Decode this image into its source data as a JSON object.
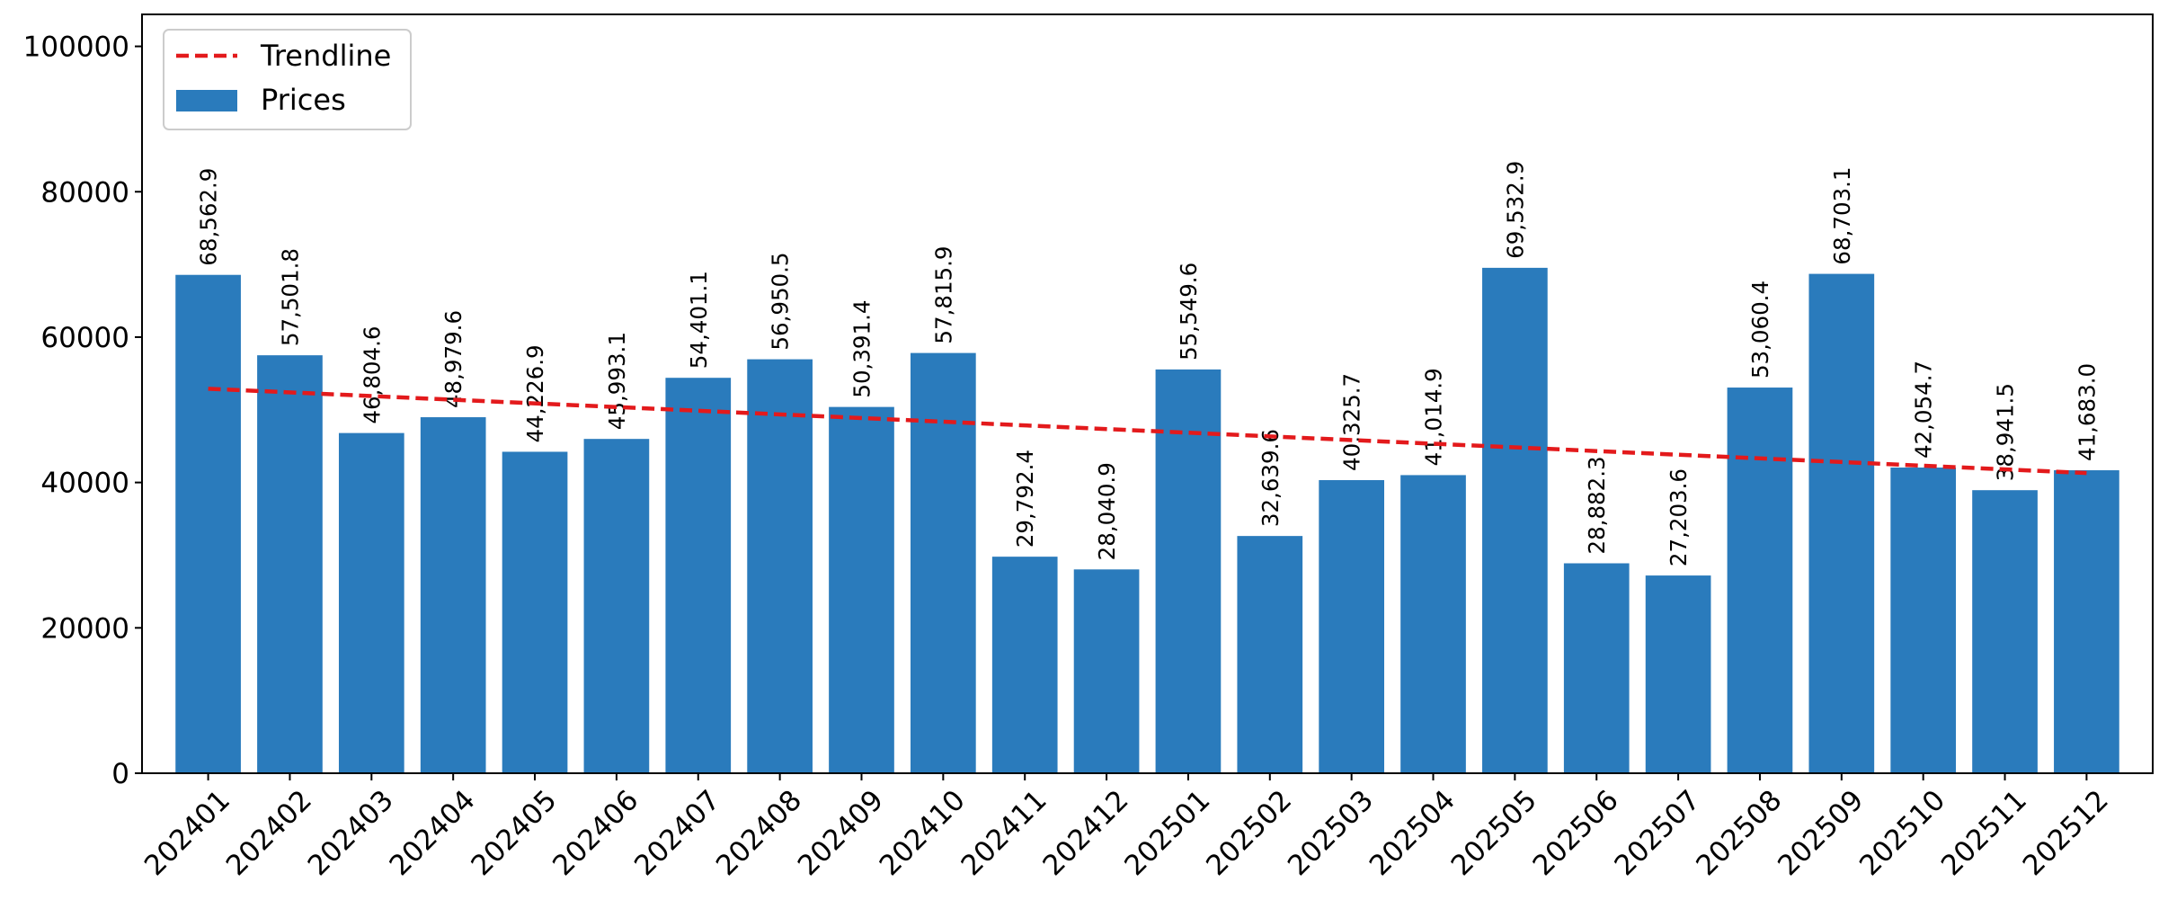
{
  "chart_data": {
    "type": "bar",
    "title": "",
    "xlabel": "",
    "ylabel": "",
    "categories": [
      "202401",
      "202402",
      "202403",
      "202404",
      "202405",
      "202406",
      "202407",
      "202408",
      "202409",
      "202410",
      "202411",
      "202412",
      "202501",
      "202502",
      "202503",
      "202504",
      "202505",
      "202506",
      "202507",
      "202508",
      "202509",
      "202510",
      "202511",
      "202512"
    ],
    "series": [
      {
        "name": "Prices",
        "color": "#2a7bbc",
        "values": [
          68562.9,
          57501.8,
          46804.6,
          48979.6,
          44226.9,
          45993.1,
          54401.1,
          56950.5,
          50391.4,
          57815.9,
          29792.4,
          28040.9,
          55549.6,
          32639.6,
          40325.7,
          41014.9,
          69532.9,
          28882.3,
          27203.6,
          53060.4,
          68703.1,
          42054.7,
          38941.5,
          41683.0
        ],
        "labels": [
          "68,562.9",
          "57,501.8",
          "46,804.6",
          "48,979.6",
          "44,226.9",
          "45,993.1",
          "54,401.1",
          "56,950.5",
          "50,391.4",
          "57,815.9",
          "29,792.4",
          "28,040.9",
          "55,549.6",
          "32,639.6",
          "40,325.7",
          "41,014.9",
          "69,532.9",
          "28,882.3",
          "27,203.6",
          "53,060.4",
          "68,703.1",
          "42,054.7",
          "38,941.5",
          "41,683.0"
        ]
      }
    ],
    "trendline": {
      "name": "Trendline",
      "color": "#e31a1c",
      "style": "dashed",
      "start_value": 52900,
      "end_value": 41300
    },
    "ylim": [
      0,
      104400
    ],
    "yticks": [
      0,
      20000,
      40000,
      60000,
      80000,
      100000
    ],
    "ytick_labels": [
      "0",
      "20000",
      "40000",
      "60000",
      "80000",
      "100000"
    ],
    "legend": {
      "placement": "top-left",
      "entries": [
        "Trendline",
        "Prices"
      ]
    },
    "grid": false
  }
}
